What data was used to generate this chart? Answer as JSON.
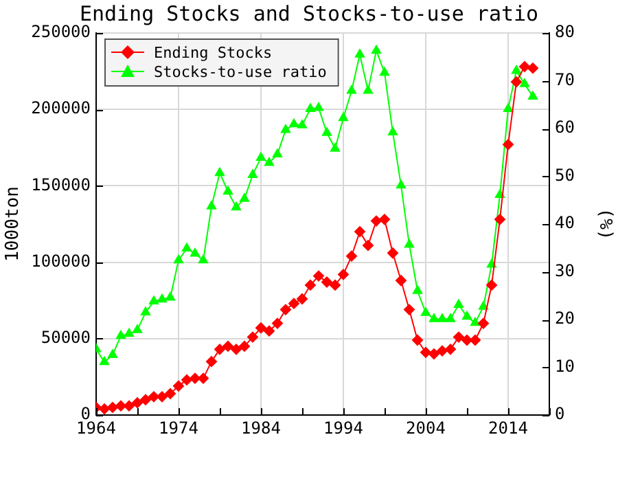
{
  "chart_data": {
    "type": "line",
    "title": "Ending Stocks and Stocks-to-use ratio",
    "ylabel": "1000ton",
    "y2label": "(%)",
    "x": [
      1964,
      1965,
      1966,
      1967,
      1968,
      1969,
      1970,
      1971,
      1972,
      1973,
      1974,
      1975,
      1976,
      1977,
      1978,
      1979,
      1980,
      1981,
      1982,
      1983,
      1984,
      1985,
      1986,
      1987,
      1988,
      1989,
      1990,
      1991,
      1992,
      1993,
      1994,
      1995,
      1996,
      1997,
      1998,
      1999,
      2000,
      2001,
      2002,
      2003,
      2004,
      2005,
      2006,
      2007,
      2008,
      2009,
      2010,
      2011,
      2012,
      2013,
      2014,
      2015,
      2016,
      2017
    ],
    "series": [
      {
        "name": "Ending Stocks",
        "color": "#ff0000",
        "marker": "diamond",
        "values": [
          5000,
          4000,
          5000,
          6000,
          6000,
          8000,
          10000,
          12000,
          12000,
          14000,
          19000,
          23000,
          24000,
          24000,
          35000,
          43000,
          45000,
          43000,
          45000,
          51000,
          57000,
          55000,
          60000,
          69000,
          73000,
          76000,
          85000,
          91000,
          87000,
          85000,
          92000,
          104000,
          120000,
          111000,
          127000,
          128000,
          106000,
          88000,
          69000,
          49000,
          41000,
          40000,
          42000,
          43000,
          51000,
          49000,
          49000,
          60000,
          85000,
          128000,
          177000,
          218000,
          228000,
          227000
        ]
      },
      {
        "name": "Stocks-to-use ratio",
        "color": "#00ff00",
        "marker": "triangle",
        "axis": "y2",
        "values": [
          13.8,
          11.1,
          12.6,
          16.6,
          17.0,
          17.8,
          21.5,
          23.8,
          24.2,
          24.6,
          32.4,
          34.9,
          33.8,
          32.4,
          43.7,
          50.7,
          46.8,
          43.5,
          45.3,
          50.3,
          53.9,
          52.8,
          54.6,
          59.7,
          60.9,
          60.7,
          64.1,
          64.3,
          59.1,
          55.8,
          62.2,
          67.9,
          75.5,
          67.9,
          76.3,
          71.7,
          59.2,
          48.1,
          35.7,
          26.0,
          21.4,
          20.1,
          20.1,
          20.1,
          23.1,
          20.6,
          19.3,
          22.7,
          31.5,
          46.1,
          64.1,
          72.1,
          69.3,
          66.7
        ]
      }
    ],
    "xlim": [
      1964,
      2019
    ],
    "xticks": [
      1964,
      {
        "value": 1969,
        "label": null
      },
      1974,
      {
        "value": 1979,
        "label": null
      },
      1984,
      {
        "value": 1989,
        "label": null
      },
      1994,
      {
        "value": 1999,
        "label": null
      },
      2004,
      {
        "value": 2009,
        "label": null
      },
      2014,
      {
        "value": 2019,
        "label": null
      }
    ],
    "ylim": [
      0,
      250000
    ],
    "yticks": [
      0,
      50000,
      100000,
      150000,
      200000,
      250000
    ],
    "y2lim": [
      0,
      80
    ],
    "y2ticks": [
      0,
      10,
      20,
      30,
      40,
      50,
      60,
      70,
      80
    ],
    "grid": true,
    "legend": "top left"
  }
}
